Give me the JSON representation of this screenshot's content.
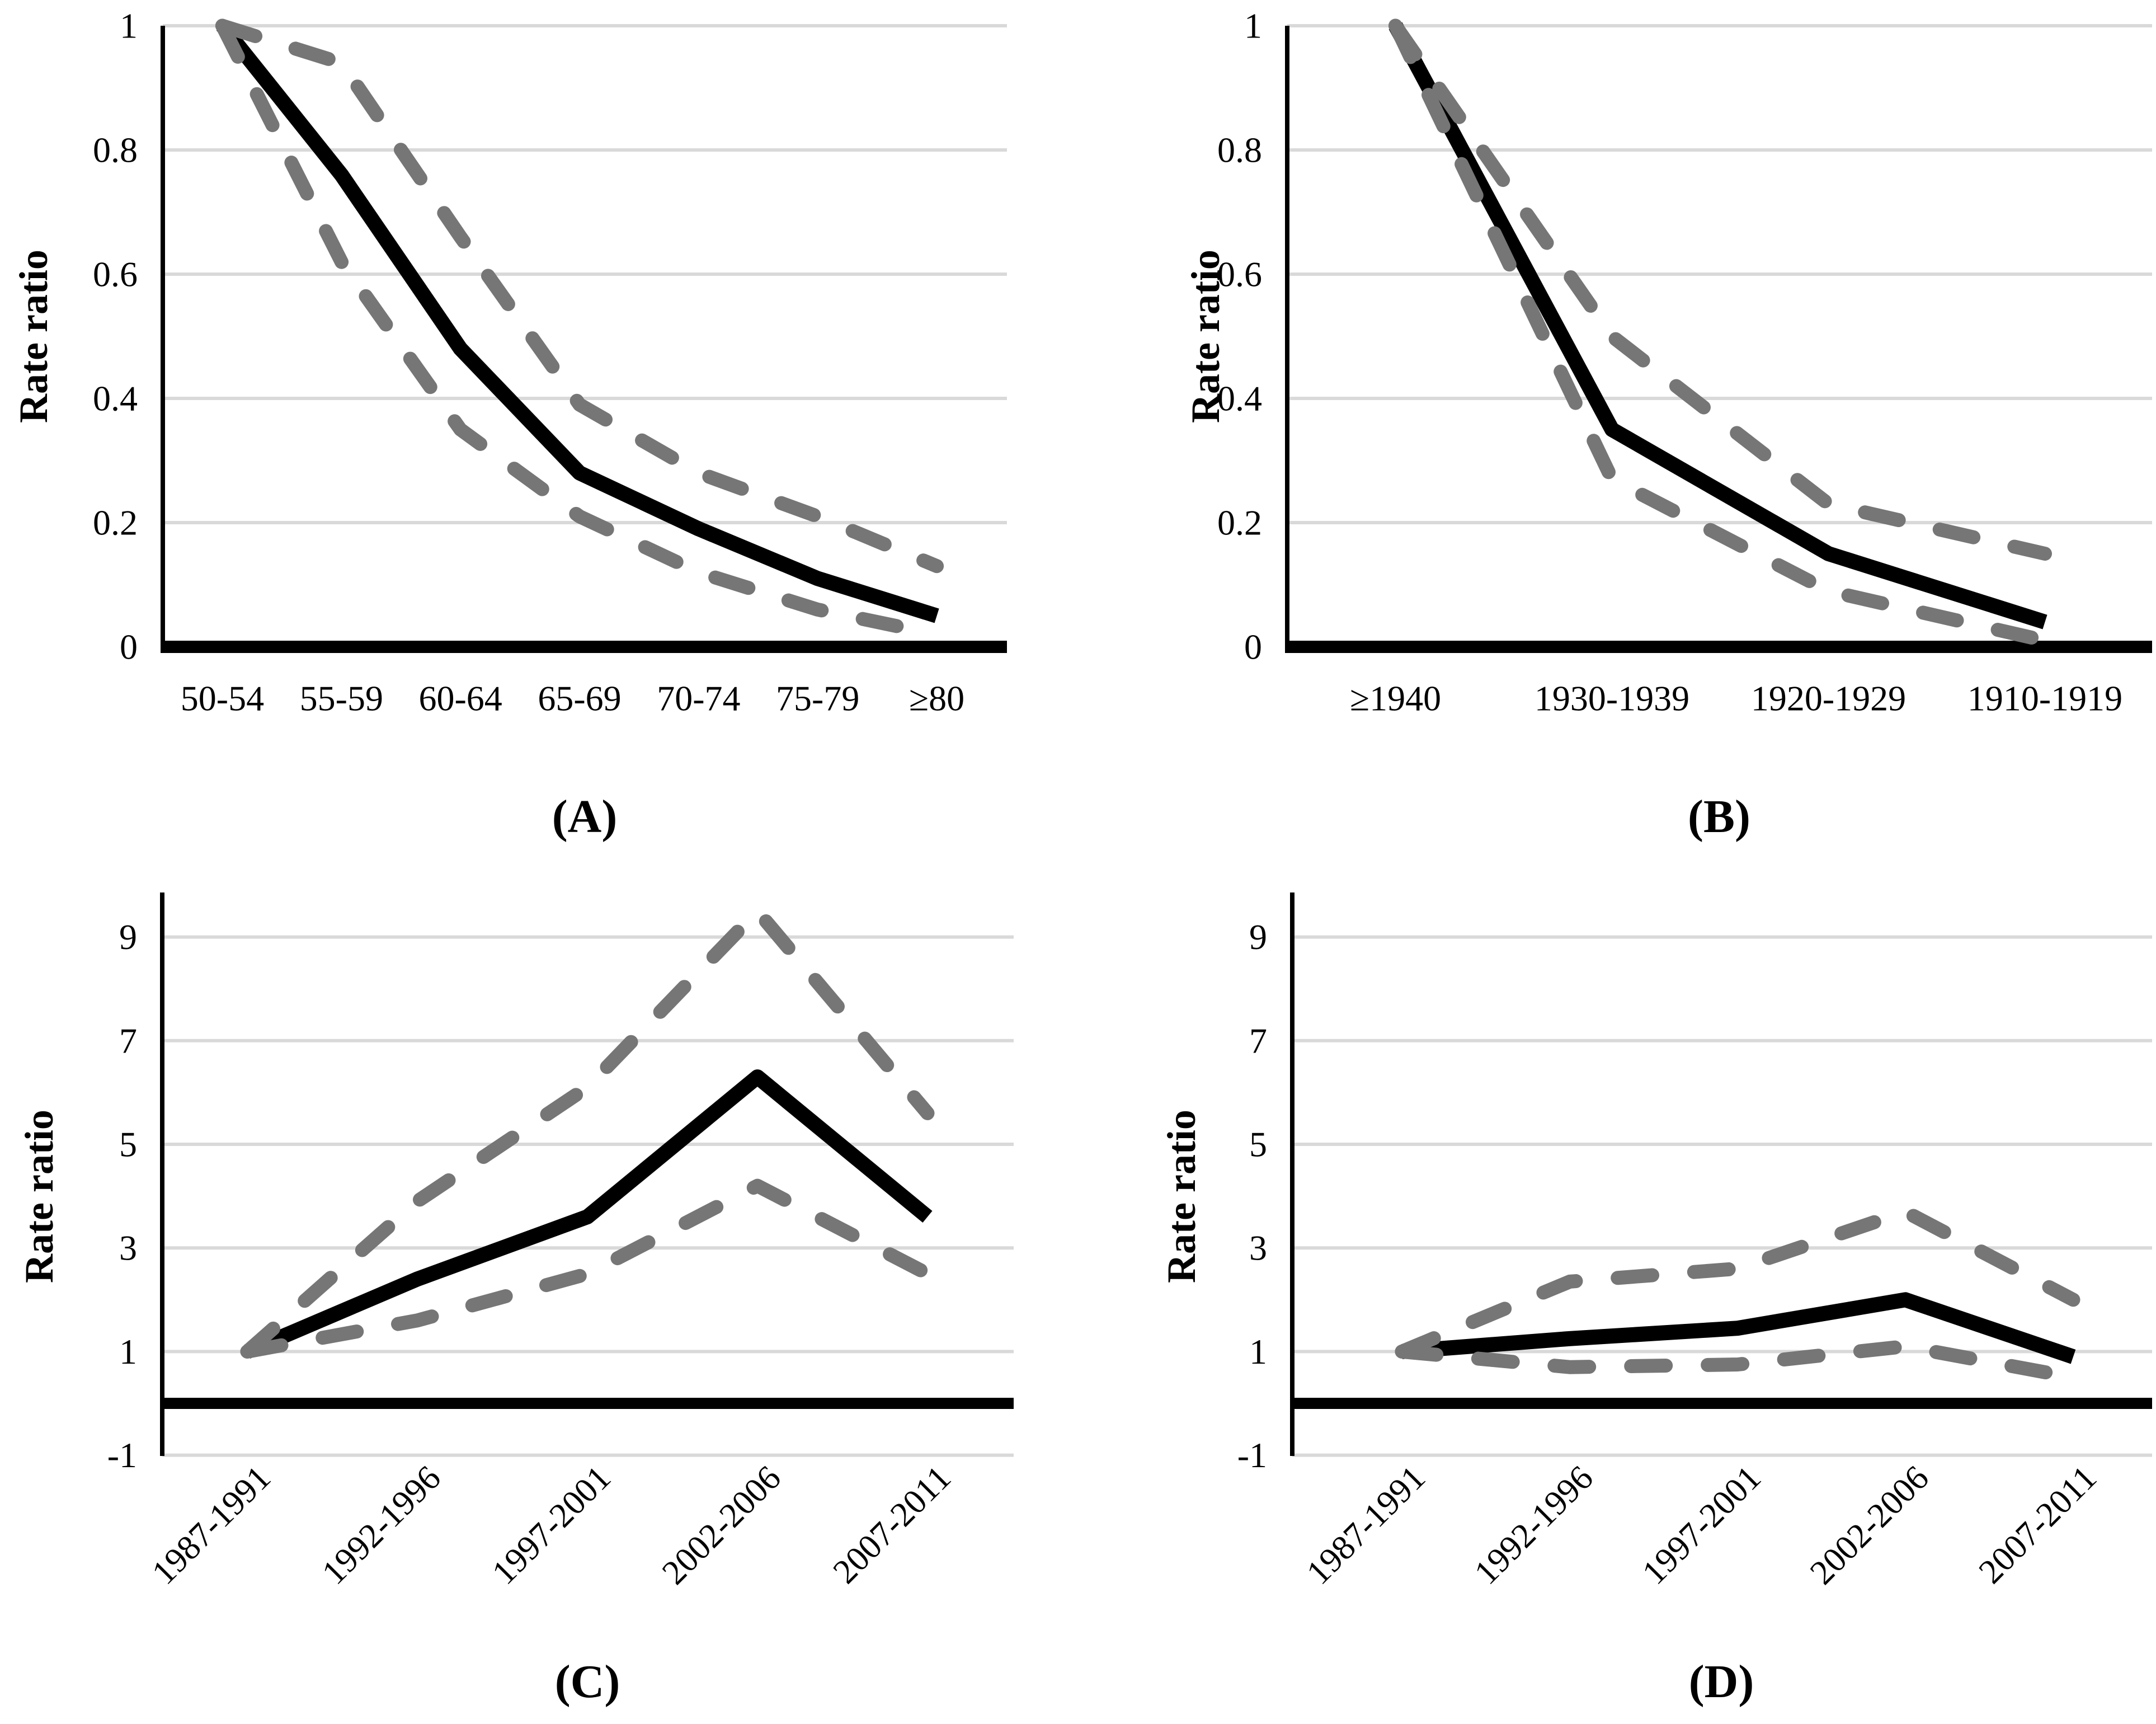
{
  "figure": {
    "background": "#ffffff",
    "colors": {
      "solid_line": "#000000",
      "dashed_line": "#767676",
      "gridline": "#d9d9d9",
      "axis": "#000000",
      "text": "#000000"
    }
  },
  "chart_data": [
    {
      "id": "A",
      "panel_label": "(A)",
      "type": "line",
      "title": "",
      "xlabel": "",
      "ylabel": "Rate ratio",
      "categories": [
        "50-54",
        "55-59",
        "60-64",
        "65-69",
        "70-74",
        "75-79",
        "≥80"
      ],
      "ytick_labels": [
        "0",
        "0.2",
        "0.4",
        "0.6",
        "0.8",
        "1"
      ],
      "ytick_values": [
        0,
        0.2,
        0.4,
        0.6,
        0.8,
        1
      ],
      "ylim": [
        0,
        1
      ],
      "grid": "horizontal",
      "legend": "none",
      "series": [
        {
          "name": "rate-ratio",
          "line_style": "solid",
          "color": "#000000",
          "values": [
            1.0,
            0.76,
            0.48,
            0.28,
            0.19,
            0.11,
            0.05
          ]
        },
        {
          "name": "ci-upper",
          "line_style": "dashed",
          "color": "#767676",
          "values": [
            1.0,
            0.94,
            0.66,
            0.39,
            0.28,
            0.21,
            0.13
          ]
        },
        {
          "name": "ci-lower",
          "line_style": "dashed",
          "color": "#767676",
          "values": [
            1.0,
            0.62,
            0.35,
            0.21,
            0.12,
            0.06,
            0.02
          ]
        }
      ]
    },
    {
      "id": "B",
      "panel_label": "(B)",
      "type": "line",
      "title": "",
      "xlabel": "",
      "ylabel": "Rate ratio",
      "categories": [
        "≥1940",
        "1930-1939",
        "1920-1929",
        "1910-1919"
      ],
      "ytick_labels": [
        "0",
        "0.2",
        "0.4",
        "0.6",
        "0.8",
        "1"
      ],
      "ytick_values": [
        0,
        0.2,
        0.4,
        0.6,
        0.8,
        1
      ],
      "ylim": [
        0,
        1
      ],
      "grid": "horizontal",
      "legend": "none",
      "series": [
        {
          "name": "rate-ratio",
          "line_style": "solid",
          "color": "#000000",
          "values": [
            1.0,
            0.35,
            0.15,
            0.04
          ]
        },
        {
          "name": "ci-upper",
          "line_style": "dashed",
          "color": "#767676",
          "values": [
            1.0,
            0.5,
            0.23,
            0.15
          ]
        },
        {
          "name": "ci-lower",
          "line_style": "dashed",
          "color": "#767676",
          "values": [
            1.0,
            0.27,
            0.09,
            0.01
          ]
        }
      ]
    },
    {
      "id": "C",
      "panel_label": "(C)",
      "type": "line",
      "title": "",
      "xlabel": "",
      "ylabel": "Rate ratio",
      "categories": [
        "1987-1991",
        "1992-1996",
        "1997-2001",
        "2002-2006",
        "2007-2011"
      ],
      "ytick_labels": [
        "-1",
        "1",
        "3",
        "5",
        "7",
        "9"
      ],
      "ytick_values": [
        -1,
        1,
        3,
        5,
        7,
        9
      ],
      "ylim": [
        -1,
        9.9
      ],
      "grid": "horizontal",
      "legend": "none",
      "series": [
        {
          "name": "rate-ratio",
          "line_style": "solid",
          "color": "#000000",
          "values": [
            1.0,
            2.4,
            3.6,
            6.3,
            3.6
          ]
        },
        {
          "name": "ci-upper",
          "line_style": "dashed",
          "color": "#767676",
          "values": [
            1.0,
            3.9,
            6.1,
            9.5,
            5.6
          ]
        },
        {
          "name": "ci-lower",
          "line_style": "dashed",
          "color": "#767676",
          "values": [
            1.0,
            1.6,
            2.5,
            4.2,
            2.5
          ]
        }
      ]
    },
    {
      "id": "D",
      "panel_label": "(D)",
      "type": "line",
      "title": "",
      "xlabel": "",
      "ylabel": "Rate ratio",
      "categories": [
        "1987-1991",
        "1992-1996",
        "1997-2001",
        "2002-2006",
        "2007-2011"
      ],
      "ytick_labels": [
        "-1",
        "1",
        "3",
        "5",
        "7",
        "9"
      ],
      "ytick_values": [
        -1,
        1,
        3,
        5,
        7,
        9
      ],
      "ylim": [
        -1,
        9.9
      ],
      "grid": "horizontal",
      "legend": "none",
      "series": [
        {
          "name": "rate-ratio",
          "line_style": "solid",
          "color": "#000000",
          "values": [
            1.0,
            1.25,
            1.45,
            2.0,
            0.9
          ]
        },
        {
          "name": "ci-upper",
          "line_style": "dashed",
          "color": "#767676",
          "values": [
            1.0,
            2.35,
            2.6,
            3.7,
            2.0
          ]
        },
        {
          "name": "ci-lower",
          "line_style": "dashed",
          "color": "#767676",
          "values": [
            1.0,
            0.7,
            0.75,
            1.1,
            0.5
          ]
        }
      ]
    }
  ]
}
